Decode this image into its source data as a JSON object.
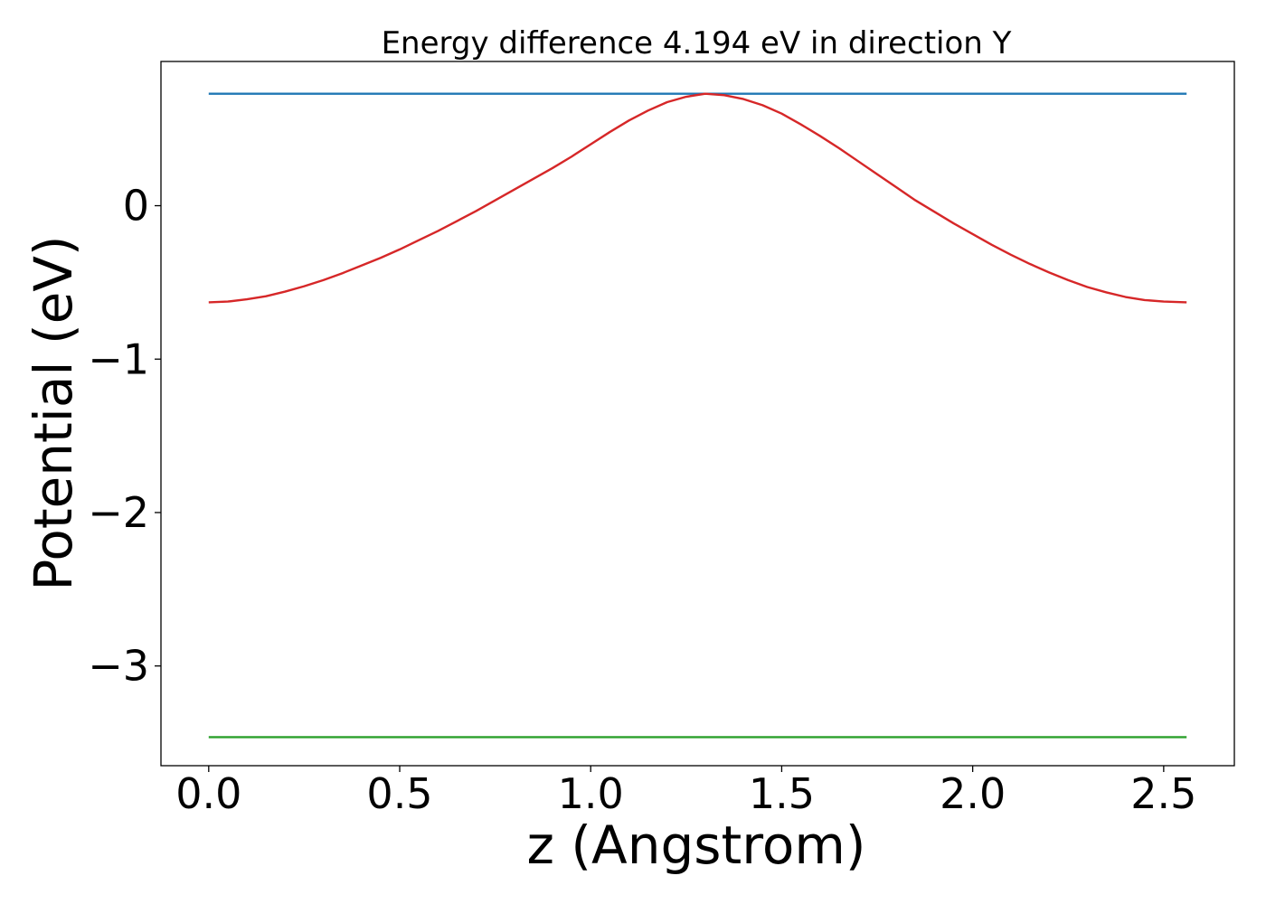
{
  "chart_data": {
    "type": "line",
    "title": "Energy difference 4.194 eV in direction Y",
    "xlabel": "z (Angstrom)",
    "ylabel": "Potential (eV)",
    "xlim": [
      -0.125,
      2.685
    ],
    "ylim": [
      -3.65,
      0.94
    ],
    "xticks": [
      0.0,
      0.5,
      1.0,
      1.5,
      2.0,
      2.5
    ],
    "xtick_labels": [
      "0.0",
      "0.5",
      "1.0",
      "1.5",
      "2.0",
      "2.5"
    ],
    "yticks": [
      0,
      -1,
      -2,
      -3
    ],
    "ytick_labels": [
      "0",
      "−1",
      "−2",
      "−3"
    ],
    "grid": false,
    "legend": "none",
    "series": [
      {
        "color": "#1f77b4",
        "x": [
          0.0,
          2.56
        ],
        "y": [
          0.73,
          0.73
        ]
      },
      {
        "color": "#d62728",
        "x": [
          0.0,
          0.05,
          0.1,
          0.15,
          0.2,
          0.25,
          0.3,
          0.35,
          0.4,
          0.45,
          0.5,
          0.55,
          0.6,
          0.65,
          0.7,
          0.75,
          0.8,
          0.85,
          0.9,
          0.95,
          1.0,
          1.05,
          1.1,
          1.15,
          1.2,
          1.25,
          1.3,
          1.35,
          1.4,
          1.45,
          1.5,
          1.55,
          1.6,
          1.65,
          1.7,
          1.75,
          1.8,
          1.85,
          1.9,
          1.95,
          2.0,
          2.05,
          2.1,
          2.15,
          2.2,
          2.25,
          2.3,
          2.35,
          2.4,
          2.45,
          2.5,
          2.56
        ],
        "y": [
          -0.63,
          -0.625,
          -0.61,
          -0.59,
          -0.56,
          -0.525,
          -0.485,
          -0.44,
          -0.39,
          -0.34,
          -0.285,
          -0.225,
          -0.165,
          -0.1,
          -0.035,
          0.035,
          0.105,
          0.175,
          0.245,
          0.32,
          0.4,
          0.48,
          0.555,
          0.62,
          0.675,
          0.71,
          0.73,
          0.72,
          0.695,
          0.655,
          0.6,
          0.53,
          0.455,
          0.375,
          0.29,
          0.205,
          0.12,
          0.035,
          -0.04,
          -0.115,
          -0.185,
          -0.255,
          -0.32,
          -0.38,
          -0.435,
          -0.485,
          -0.53,
          -0.565,
          -0.595,
          -0.615,
          -0.625,
          -0.63
        ]
      },
      {
        "color": "#2ca02c",
        "x": [
          0.0,
          2.56
        ],
        "y": [
          -3.464,
          -3.464
        ]
      }
    ]
  }
}
